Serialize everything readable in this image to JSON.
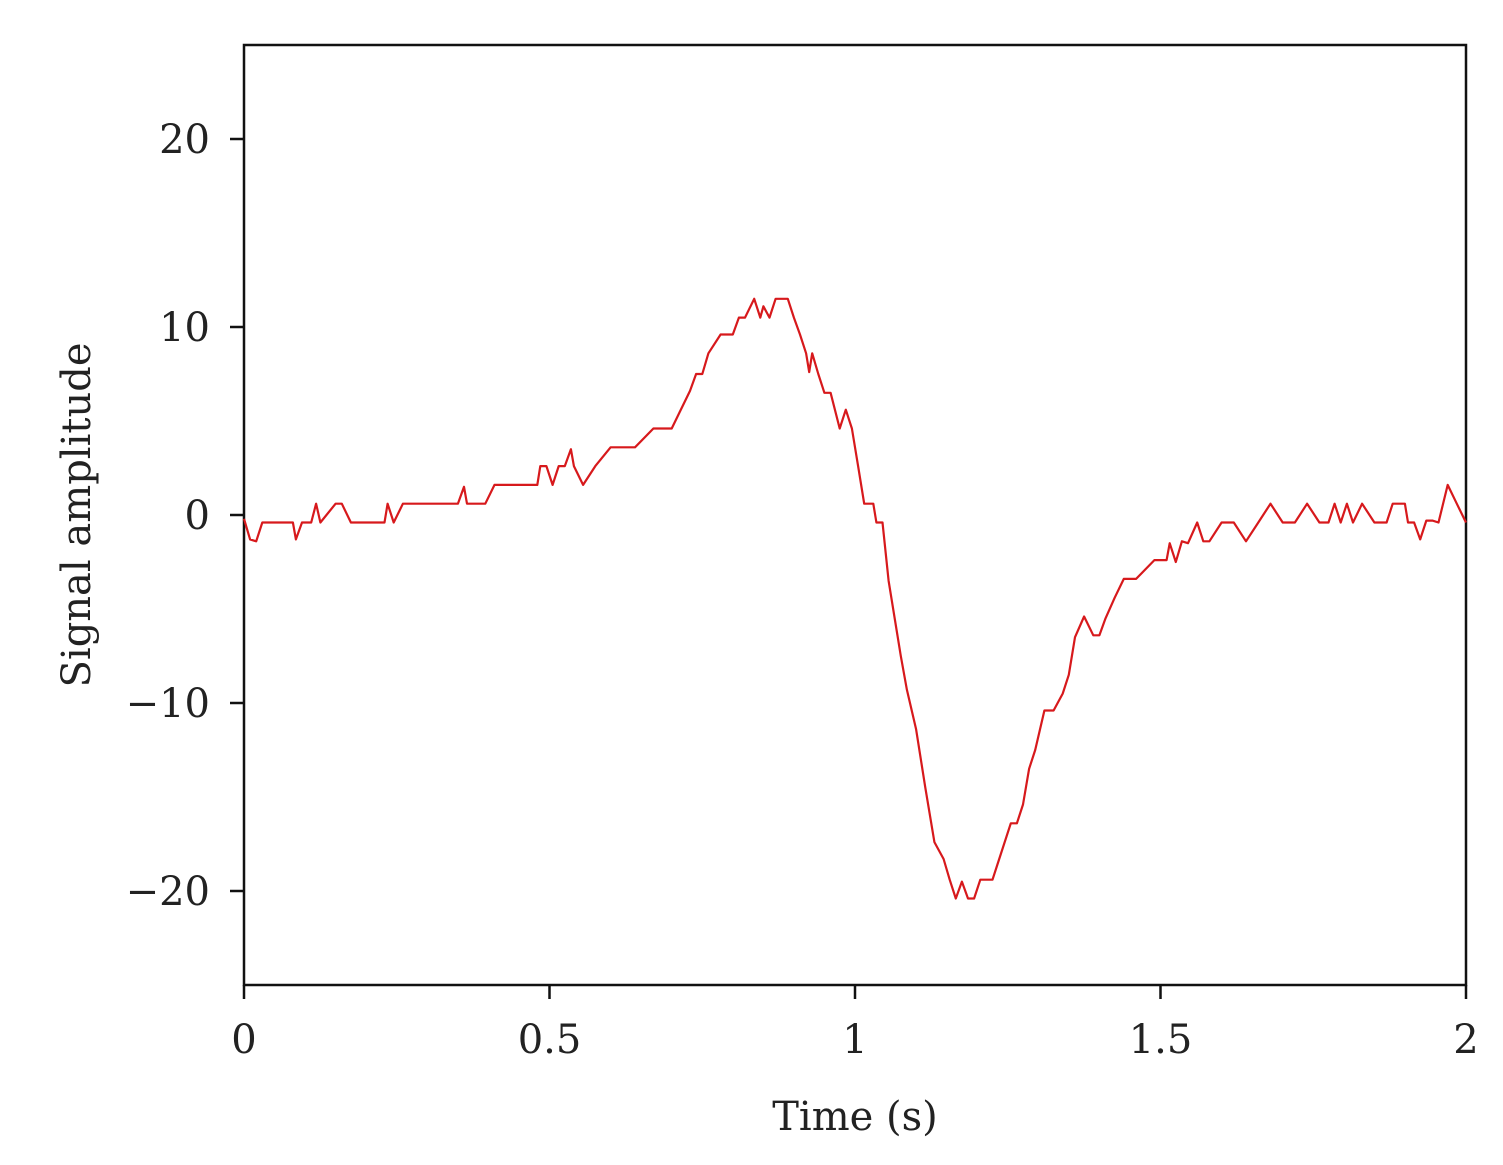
{
  "chart_data": {
    "type": "line",
    "title": "",
    "xlabel": "Time (s)",
    "ylabel": "Signal amplitude",
    "xlim": [
      0,
      2
    ],
    "ylim": [
      -25,
      25
    ],
    "xticks": [
      0,
      0.5,
      1,
      1.5,
      2
    ],
    "xtick_labels": [
      "0",
      "0.5",
      "1",
      "1.5",
      "2"
    ],
    "yticks": [
      20,
      10,
      0,
      -10,
      -20
    ],
    "ytick_labels": [
      "20",
      "10",
      "0",
      "−10",
      "−20"
    ],
    "grid": false,
    "legend": "none",
    "series": [
      {
        "color": "#d7191c",
        "x": [
          0.0,
          0.01,
          0.02,
          0.03,
          0.05,
          0.08,
          0.085,
          0.095,
          0.11,
          0.118,
          0.125,
          0.15,
          0.16,
          0.175,
          0.2,
          0.23,
          0.235,
          0.245,
          0.26,
          0.3,
          0.35,
          0.36,
          0.365,
          0.375,
          0.395,
          0.41,
          0.45,
          0.48,
          0.485,
          0.495,
          0.505,
          0.515,
          0.525,
          0.535,
          0.54,
          0.555,
          0.575,
          0.6,
          0.64,
          0.67,
          0.7,
          0.73,
          0.74,
          0.75,
          0.76,
          0.78,
          0.8,
          0.81,
          0.82,
          0.835,
          0.845,
          0.85,
          0.86,
          0.87,
          0.89,
          0.9,
          0.91,
          0.92,
          0.925,
          0.93,
          0.94,
          0.95,
          0.96,
          0.975,
          0.985,
          0.995,
          1.005,
          1.015,
          1.03,
          1.035,
          1.045,
          1.055,
          1.065,
          1.075,
          1.085,
          1.1,
          1.115,
          1.13,
          1.145,
          1.155,
          1.165,
          1.175,
          1.185,
          1.195,
          1.205,
          1.215,
          1.225,
          1.235,
          1.255,
          1.265,
          1.275,
          1.285,
          1.295,
          1.31,
          1.325,
          1.34,
          1.35,
          1.36,
          1.375,
          1.39,
          1.4,
          1.41,
          1.425,
          1.44,
          1.46,
          1.49,
          1.51,
          1.515,
          1.525,
          1.535,
          1.545,
          1.56,
          1.57,
          1.58,
          1.6,
          1.62,
          1.64,
          1.66,
          1.68,
          1.7,
          1.72,
          1.74,
          1.76,
          1.775,
          1.785,
          1.795,
          1.805,
          1.815,
          1.83,
          1.85,
          1.87,
          1.88,
          1.9,
          1.905,
          1.915,
          1.925,
          1.935,
          1.945,
          1.955,
          1.97,
          1.985,
          2.0
        ],
        "y": [
          -0.2,
          -1.3,
          -1.4,
          -0.4,
          -0.4,
          -0.4,
          -1.3,
          -0.4,
          -0.4,
          0.6,
          -0.4,
          0.6,
          0.6,
          -0.4,
          -0.4,
          -0.4,
          0.6,
          -0.4,
          0.6,
          0.6,
          0.6,
          1.5,
          0.6,
          0.6,
          0.6,
          1.6,
          1.6,
          1.6,
          2.6,
          2.6,
          1.6,
          2.6,
          2.6,
          3.5,
          2.6,
          1.6,
          2.6,
          3.6,
          3.6,
          4.6,
          4.6,
          6.6,
          7.5,
          7.5,
          8.6,
          9.6,
          9.6,
          10.5,
          10.5,
          11.5,
          10.5,
          11.1,
          10.5,
          11.5,
          11.5,
          10.5,
          9.6,
          8.6,
          7.6,
          8.6,
          7.5,
          6.5,
          6.5,
          4.6,
          5.6,
          4.6,
          2.6,
          0.6,
          0.6,
          -0.4,
          -0.4,
          -3.5,
          -5.5,
          -7.5,
          -9.3,
          -11.4,
          -14.5,
          -17.4,
          -18.3,
          -19.4,
          -20.4,
          -19.5,
          -20.4,
          -20.4,
          -19.4,
          -19.4,
          -19.4,
          -18.4,
          -16.4,
          -16.4,
          -15.4,
          -13.5,
          -12.5,
          -10.4,
          -10.4,
          -9.5,
          -8.5,
          -6.5,
          -5.4,
          -6.4,
          -6.4,
          -5.5,
          -4.4,
          -3.4,
          -3.4,
          -2.4,
          -2.4,
          -1.5,
          -2.5,
          -1.4,
          -1.5,
          -0.4,
          -1.4,
          -1.4,
          -0.4,
          -0.4,
          -1.4,
          -0.4,
          0.6,
          -0.4,
          -0.4,
          0.6,
          -0.4,
          -0.4,
          0.6,
          -0.4,
          0.6,
          -0.4,
          0.6,
          -0.4,
          -0.4,
          0.6,
          0.6,
          -0.4,
          -0.4,
          -1.3,
          -0.3,
          -0.3,
          -0.4,
          1.6,
          0.6,
          -0.4
        ]
      }
    ]
  }
}
